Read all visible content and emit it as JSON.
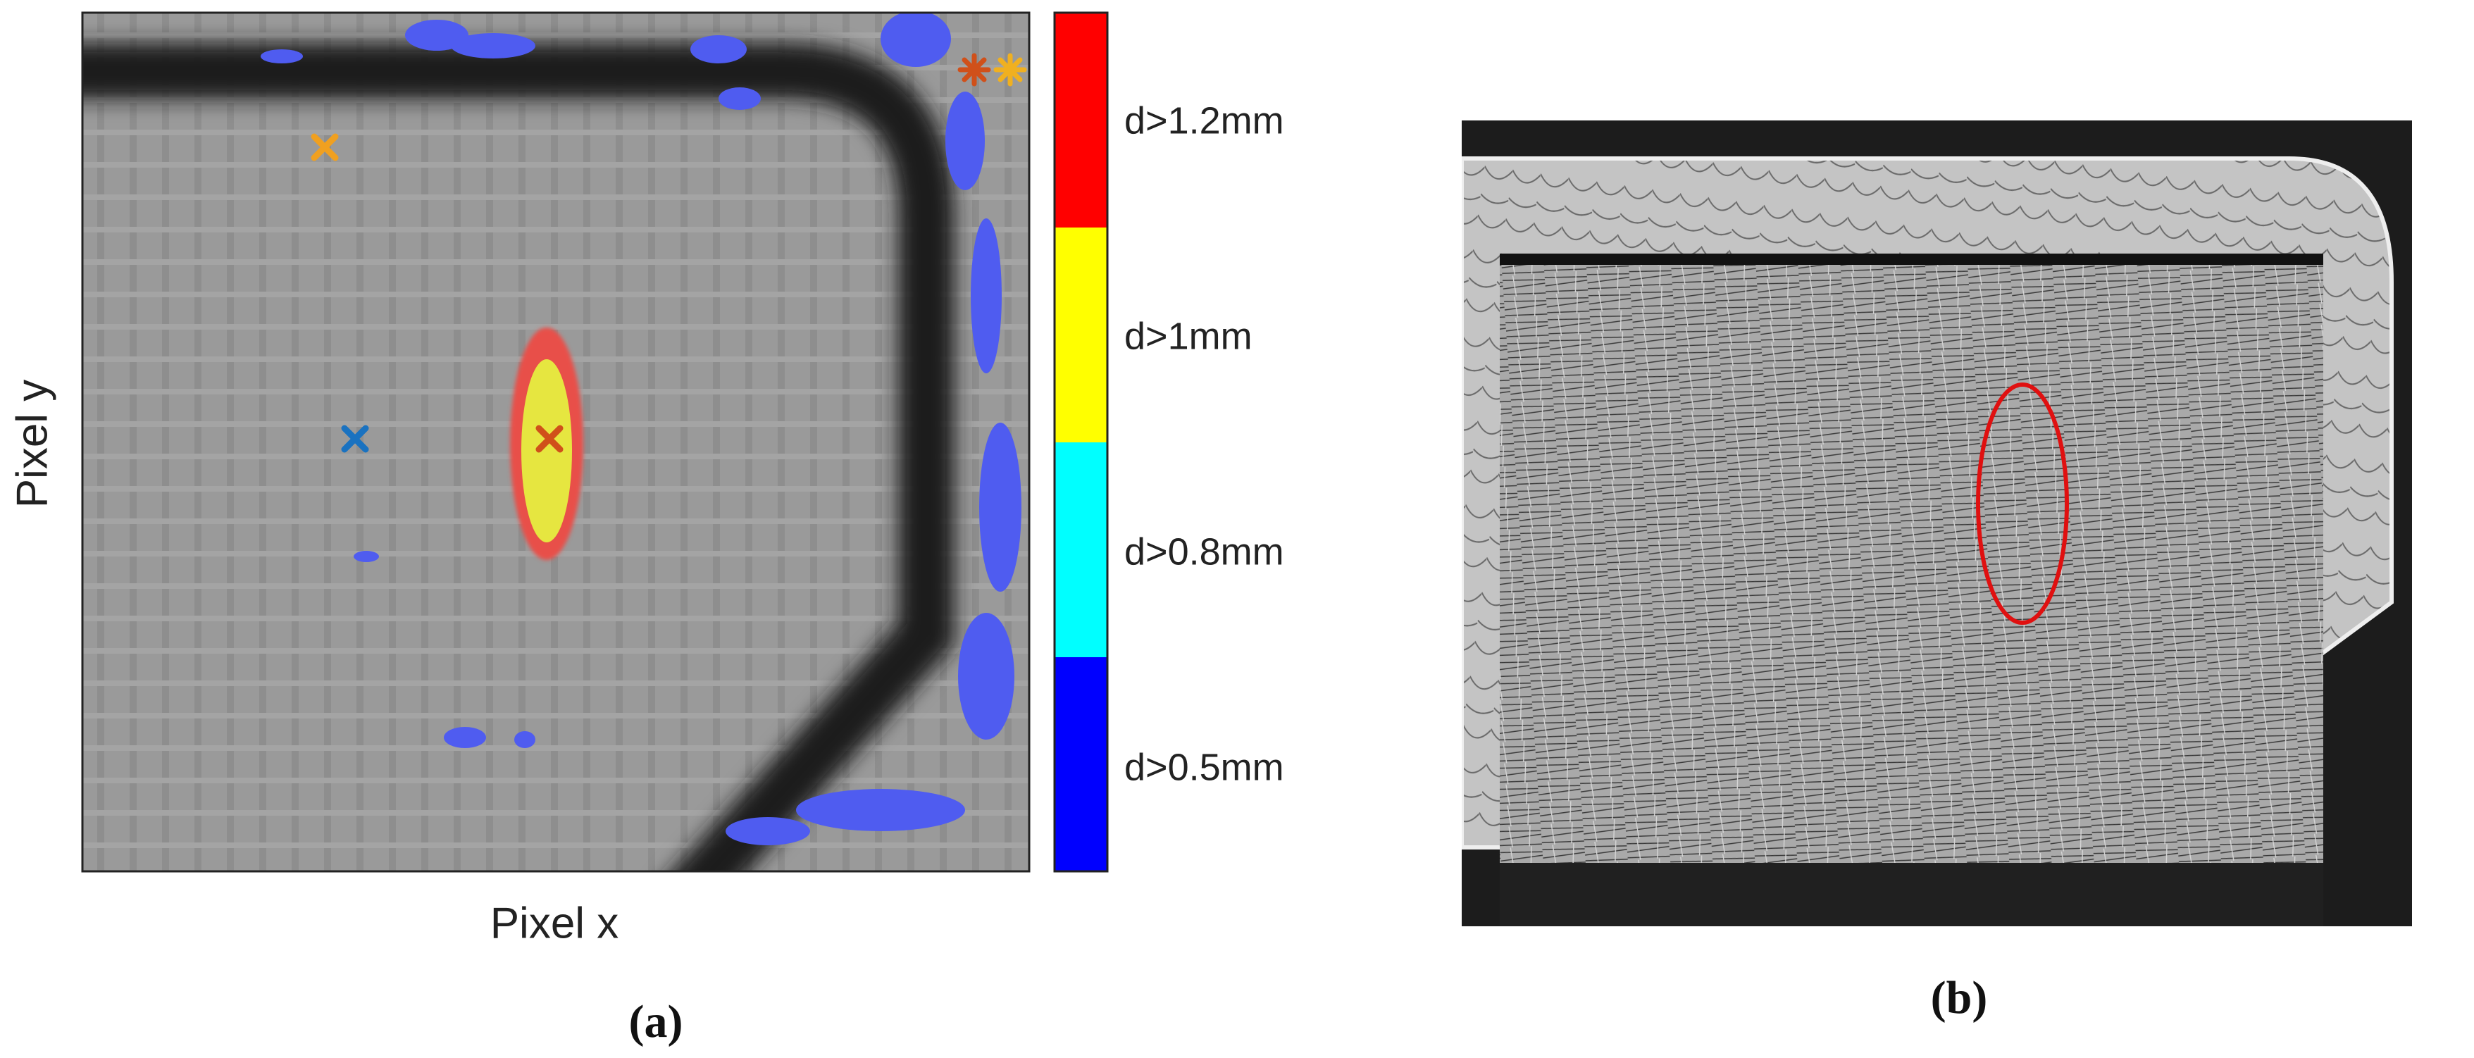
{
  "panel_a": {
    "y_label": "Pixel y",
    "x_label": "Pixel x",
    "colorbar": {
      "labels": [
        "d>1.2mm",
        "d>1mm",
        "d>0.8mm",
        "d>0.5mm"
      ]
    },
    "caption": "(a)"
  },
  "panel_b": {
    "caption": "(b)"
  }
}
